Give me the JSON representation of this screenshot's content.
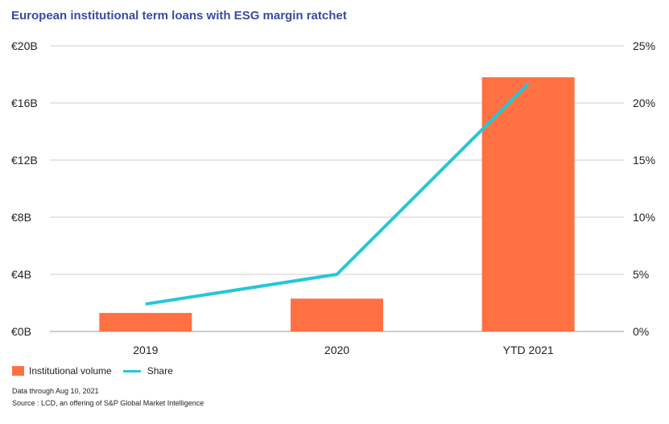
{
  "title": "European institutional term loans with ESG margin ratchet",
  "colors": {
    "bar": "#ff7043",
    "line": "#26c6da",
    "title": "#3b4ba0",
    "grid": "#cccccc"
  },
  "legend": {
    "bar_label": "Institutional volume",
    "line_label": "Share"
  },
  "notes": {
    "data_through": "Data through Aug 10, 2021",
    "source": "Source : LCD, an offering of S&P Global Market Intelligence"
  },
  "chart_data": {
    "type": "bar",
    "title": "European institutional term loans with ESG margin ratchet",
    "categories": [
      "2019",
      "2020",
      "YTD 2021"
    ],
    "series": [
      {
        "name": "Institutional volume",
        "type": "bar",
        "axis": "left",
        "values": [
          1.3,
          2.3,
          17.8
        ]
      },
      {
        "name": "Share",
        "type": "line",
        "axis": "right",
        "values": [
          2.4,
          5.0,
          21.7
        ]
      }
    ],
    "y_left": {
      "ylim": [
        0,
        20
      ],
      "ticks": [
        "€0B",
        "€4B",
        "€8B",
        "€12B",
        "€16B",
        "€20B"
      ]
    },
    "y_right": {
      "ylim": [
        0,
        25
      ],
      "ticks": [
        "0%",
        "5%",
        "10%",
        "15%",
        "20%",
        "25%"
      ]
    },
    "grid": true,
    "legend_position": "bottom-left"
  }
}
